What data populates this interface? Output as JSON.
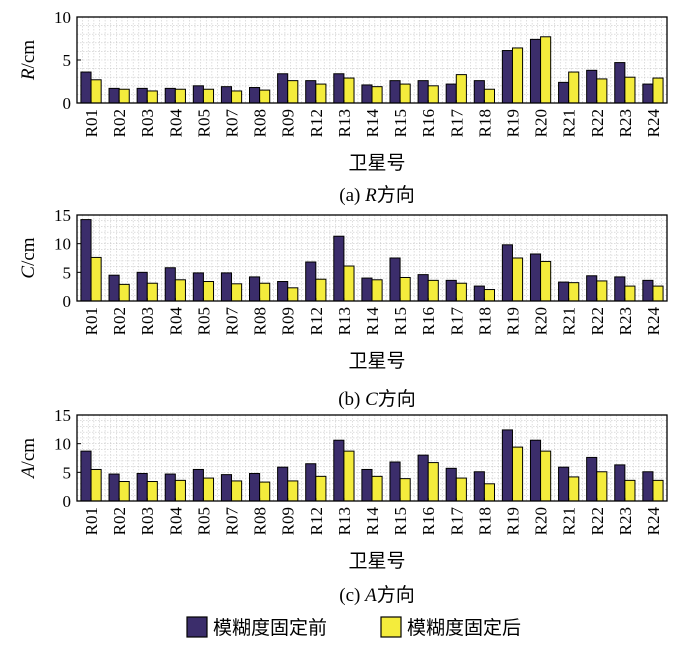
{
  "colors": {
    "before": "#3b2d6b",
    "after": "#f4ec3c"
  },
  "legend": {
    "before": "模糊度固定前",
    "after": "模糊度固定后"
  },
  "chart_data": [
    {
      "type": "bar",
      "ylabel_var": "R",
      "ylabel_unit": "/cm",
      "xlabel": "卫星号",
      "caption_prefix": "(a) ",
      "caption_var": "R",
      "caption_suffix": "方向",
      "ylim": [
        0,
        10
      ],
      "yticks": [
        0,
        5,
        10
      ],
      "categories": [
        "R01",
        "R02",
        "R03",
        "R04",
        "R05",
        "R07",
        "R08",
        "R09",
        "R12",
        "R13",
        "R14",
        "R15",
        "R16",
        "R17",
        "R18",
        "R19",
        "R20",
        "R21",
        "R22",
        "R23",
        "R24"
      ],
      "series": [
        {
          "name": "模糊度固定前",
          "values": [
            3.6,
            1.7,
            1.7,
            1.7,
            2.0,
            1.9,
            1.8,
            3.4,
            2.6,
            3.4,
            2.1,
            2.6,
            2.6,
            2.2,
            2.6,
            6.1,
            7.4,
            2.4,
            3.8,
            4.7,
            2.2
          ]
        },
        {
          "name": "模糊度固定后",
          "values": [
            2.7,
            1.6,
            1.4,
            1.6,
            1.6,
            1.4,
            1.5,
            2.6,
            2.2,
            2.9,
            1.9,
            2.2,
            2.0,
            3.3,
            1.6,
            6.4,
            7.7,
            3.6,
            2.8,
            3.0,
            2.9
          ]
        }
      ]
    },
    {
      "type": "bar",
      "ylabel_var": "C",
      "ylabel_unit": "/cm",
      "xlabel": "卫星号",
      "caption_prefix": "(b) ",
      "caption_var": "C",
      "caption_suffix": "方向",
      "ylim": [
        0,
        15
      ],
      "yticks": [
        0,
        5,
        10,
        15
      ],
      "categories": [
        "R01",
        "R02",
        "R03",
        "R04",
        "R05",
        "R07",
        "R08",
        "R09",
        "R12",
        "R13",
        "R14",
        "R15",
        "R16",
        "R17",
        "R18",
        "R19",
        "R20",
        "R21",
        "R22",
        "R23",
        "R24"
      ],
      "series": [
        {
          "name": "模糊度固定前",
          "values": [
            14.2,
            4.5,
            5.0,
            5.8,
            4.9,
            4.9,
            4.2,
            3.4,
            6.8,
            11.3,
            4.0,
            7.5,
            4.6,
            3.6,
            2.6,
            9.8,
            8.2,
            3.3,
            4.4,
            4.2,
            3.6
          ]
        },
        {
          "name": "模糊度固定后",
          "values": [
            7.6,
            2.9,
            3.1,
            3.7,
            3.4,
            3.0,
            3.1,
            2.3,
            3.8,
            6.1,
            3.7,
            4.1,
            3.6,
            3.1,
            2.0,
            7.5,
            6.9,
            3.2,
            3.5,
            2.6,
            2.6
          ]
        }
      ]
    },
    {
      "type": "bar",
      "ylabel_var": "A",
      "ylabel_unit": "/cm",
      "xlabel": "卫星号",
      "caption_prefix": "(c) ",
      "caption_var": "A",
      "caption_suffix": "方向",
      "ylim": [
        0,
        15
      ],
      "yticks": [
        0,
        5,
        10,
        15
      ],
      "categories": [
        "R01",
        "R02",
        "R03",
        "R04",
        "R05",
        "R07",
        "R08",
        "R09",
        "R12",
        "R13",
        "R14",
        "R15",
        "R16",
        "R17",
        "R18",
        "R19",
        "R20",
        "R21",
        "R22",
        "R23",
        "R24"
      ],
      "series": [
        {
          "name": "模糊度固定前",
          "values": [
            8.7,
            4.7,
            4.8,
            4.7,
            5.5,
            4.6,
            4.8,
            5.9,
            6.5,
            10.6,
            5.5,
            6.8,
            8.0,
            5.7,
            5.1,
            12.4,
            10.6,
            5.9,
            7.6,
            6.3,
            5.1
          ]
        },
        {
          "name": "模糊度固定后",
          "values": [
            5.5,
            3.4,
            3.4,
            3.6,
            4.0,
            3.5,
            3.3,
            3.5,
            4.3,
            8.7,
            4.3,
            3.9,
            6.7,
            4.0,
            3.0,
            9.4,
            8.7,
            4.2,
            5.1,
            3.6,
            3.6
          ]
        }
      ]
    }
  ]
}
